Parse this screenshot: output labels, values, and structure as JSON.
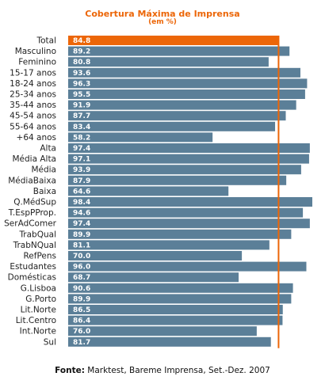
{
  "chart_data": {
    "type": "bar",
    "orientation": "horizontal",
    "title": "Cobertura Máxima de Imprensa",
    "subtitle": "(em %)",
    "categories": [
      "Total",
      "Masculino",
      "Feminino",
      "15-17 anos",
      "18-24 anos",
      "25-34 anos",
      "35-44 anos",
      "45-54 anos",
      "55-64 anos",
      "+64 anos",
      "Alta",
      "Média Alta",
      "Média",
      "MédiaBaixa",
      "Baixa",
      "Q.MédSup",
      "T.EspPProp.",
      "SerAdComer",
      "TrabQual",
      "TrabNQual",
      "RefPens",
      "Estudantes",
      "Domésticas",
      "G.Lisboa",
      "G.Porto",
      "Lit.Norte",
      "Lit.Centro",
      "Int.Norte",
      "Sul"
    ],
    "values": [
      84.8,
      89.2,
      80.8,
      93.6,
      96.3,
      95.5,
      91.9,
      87.7,
      83.4,
      58.2,
      97.4,
      97.1,
      93.9,
      87.9,
      64.6,
      98.4,
      94.6,
      97.4,
      89.9,
      81.1,
      70.0,
      96.0,
      68.7,
      90.6,
      89.9,
      86.5,
      86.4,
      76.0,
      81.7
    ],
    "value_labels": [
      "84.8",
      "89.2",
      "80.8",
      "93.6",
      "96.3",
      "95.5",
      "91.9",
      "87.7",
      "83.4",
      "58.2",
      "97.4",
      "97.1",
      "93.9",
      "87.9",
      "64.6",
      "98.4",
      "94.6",
      "97.4",
      "89.9",
      "81.1",
      "70.0",
      "96.0",
      "68.7",
      "90.6",
      "89.9",
      "86.5",
      "86.4",
      "76.0",
      "81.7"
    ],
    "highlight_index": 0,
    "reference_line": 84.8,
    "xlim": [
      0,
      100
    ],
    "legend": "none",
    "grid": false,
    "colors": {
      "bar": "#5b7f98",
      "highlight_bar": "#ec6608",
      "reference_line": "#ec6608",
      "title": "#ec6608"
    }
  },
  "source": {
    "label": "Fonte:",
    "text": " Marktest, Bareme Imprensa, Set.-Dez. 2007"
  }
}
